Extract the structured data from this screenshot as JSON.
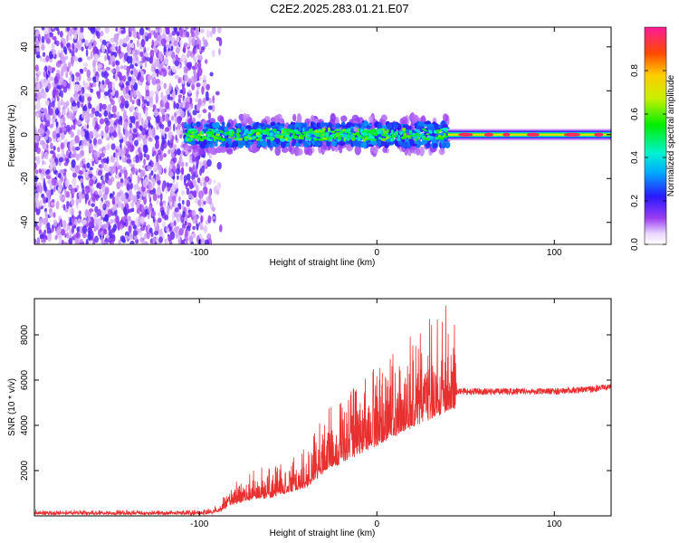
{
  "title": "C2E2.2025.283.01.21.E07",
  "chart_data": [
    {
      "type": "heatmap",
      "title": "C2E2.2025.283.01.21.E07",
      "xlabel": "Height of straight line (km)",
      "ylabel": "Frequency (Hz)",
      "xlim": [
        -193,
        132
      ],
      "ylim": [
        -50,
        49
      ],
      "xticks": [
        -100,
        0,
        100
      ],
      "yticks": [
        -40,
        -20,
        0,
        20,
        40
      ],
      "colorbar": {
        "label": "Normalized spectral amplitude",
        "range": [
          0,
          1
        ],
        "ticks": [
          0.0,
          0.2,
          0.4,
          0.6,
          0.8
        ]
      },
      "regions": [
        {
          "name": "broadband noise",
          "x_range": [
            -193,
            -88
          ],
          "freq_range": [
            -50,
            49
          ],
          "amplitude": 0.08
        },
        {
          "name": "narrow band",
          "x_range": [
            -108,
            40
          ],
          "freq_center": 0,
          "freq_halfwidth": 5,
          "amplitude": 0.35
        },
        {
          "name": "clean tone",
          "x_range": [
            40,
            132
          ],
          "freq_center": 0,
          "freq_halfwidth": 2,
          "amplitude": 0.95
        }
      ]
    },
    {
      "type": "line",
      "xlabel": "Height of straight line (km)",
      "ylabel": "SNR (10 * v/v)",
      "xlim": [
        -193,
        132
      ],
      "ylim": [
        0,
        9600
      ],
      "xticks": [
        -100,
        0,
        100
      ],
      "yticks": [
        2000,
        4000,
        6000,
        8000
      ],
      "series": [
        {
          "name": "SNR",
          "color": "#e83030",
          "x": [
            -193,
            -100,
            -90,
            -85,
            -80,
            -70,
            -60,
            -50,
            -40,
            -30,
            -20,
            -10,
            0,
            10,
            20,
            30,
            40,
            44,
            45,
            60,
            80,
            100,
            120,
            132
          ],
          "baseline": [
            150,
            150,
            200,
            400,
            600,
            800,
            900,
            1100,
            1300,
            2000,
            2400,
            2800,
            3200,
            3600,
            4000,
            4300,
            4700,
            4800,
            5500,
            5500,
            5500,
            5500,
            5600,
            5700
          ],
          "noise": [
            150,
            150,
            300,
            700,
            1200,
            1300,
            1400,
            1600,
            1800,
            2600,
            3000,
            3400,
            3600,
            3800,
            4200,
            4500,
            4800,
            5000,
            300,
            300,
            300,
            300,
            300,
            300
          ]
        }
      ]
    }
  ]
}
